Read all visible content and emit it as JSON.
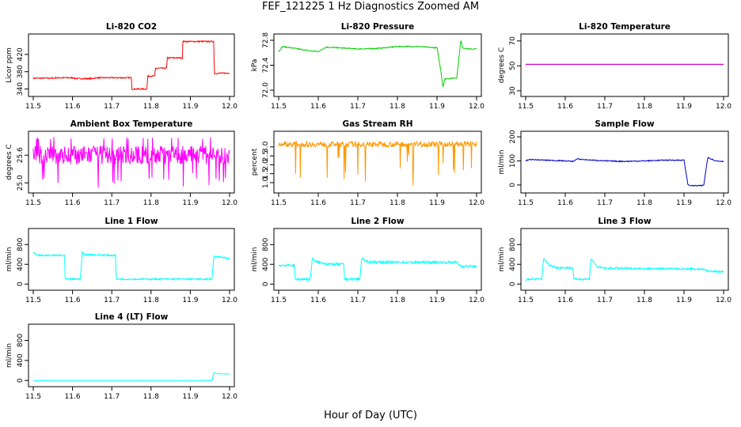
{
  "title": "FEF_121225  1 Hz Diagnostics Zoomed AM",
  "xlabel": "Hour of Day (UTC)",
  "chart_data": [
    {
      "type": "line",
      "title": "Li-820 CO2",
      "ylabel": "Licor ppm",
      "color": "#ff0000",
      "xlim": [
        11.5,
        12.0
      ],
      "ylim": [
        330,
        460
      ],
      "xticks": [
        11.5,
        11.6,
        11.7,
        11.8,
        11.9,
        12.0
      ],
      "yticks": [
        340,
        380,
        420
      ],
      "series": [
        {
          "x": [
            11.5,
            11.55,
            11.56,
            11.6,
            11.61,
            11.65,
            11.66,
            11.7,
            11.75,
            11.751,
            11.76,
            11.761,
            11.79,
            11.791,
            11.8,
            11.81,
            11.811,
            11.84,
            11.841,
            11.87,
            11.88,
            11.881,
            11.95,
            11.96,
            11.961,
            12.0
          ],
          "y": [
            365,
            365,
            366,
            366,
            364,
            364,
            366,
            366,
            366,
            340,
            340,
            340,
            340,
            370,
            370,
            370,
            388,
            388,
            412,
            412,
            412,
            450,
            450,
            450,
            376,
            377
          ],
          "noise": 1.5
        }
      ]
    },
    {
      "type": "line",
      "title": "Li-820 Pressure",
      "ylabel": "kPa",
      "color": "#00cc00",
      "xlim": [
        11.5,
        12.0
      ],
      "ylim": [
        71.95,
        72.85
      ],
      "xticks": [
        11.5,
        11.6,
        11.7,
        11.8,
        11.9,
        12.0
      ],
      "yticks": [
        72.0,
        72.4,
        72.8
      ],
      "series": [
        {
          "x": [
            11.5,
            11.51,
            11.55,
            11.58,
            11.6,
            11.62,
            11.65,
            11.7,
            11.75,
            11.8,
            11.85,
            11.9,
            11.91,
            11.915,
            11.92,
            11.95,
            11.955,
            11.96,
            11.965,
            11.98,
            12.0
          ],
          "y": [
            72.62,
            72.7,
            72.66,
            72.63,
            72.62,
            72.69,
            72.68,
            72.66,
            72.67,
            72.7,
            72.7,
            72.68,
            72.3,
            72.05,
            72.18,
            72.2,
            72.5,
            72.8,
            72.68,
            72.66,
            72.66
          ],
          "noise": 0.008
        }
      ]
    },
    {
      "type": "line",
      "title": "Li-820 Temperature",
      "ylabel": "degrees C",
      "color": "#cc00cc",
      "xlim": [
        11.5,
        12.0
      ],
      "ylim": [
        28,
        73
      ],
      "xticks": [
        11.5,
        11.6,
        11.7,
        11.8,
        11.9,
        12.0
      ],
      "yticks": [
        30,
        50,
        70
      ],
      "series": [
        {
          "x": [
            11.5,
            12.0
          ],
          "y": [
            51.2,
            51.2
          ],
          "noise": 0
        }
      ]
    },
    {
      "type": "line",
      "title": "Ambient Box Temperature",
      "ylabel": "degrees C",
      "color": "#ff00ff",
      "xlim": [
        11.5,
        12.0
      ],
      "ylim": [
        24.85,
        26.05
      ],
      "xticks": [
        11.5,
        11.6,
        11.7,
        11.8,
        11.9,
        12.0
      ],
      "yticks": [
        25.0,
        25.6
      ],
      "series": [
        {
          "x": [
            11.5,
            12.0
          ],
          "y": [
            25.6,
            25.6
          ],
          "noise": 0.2,
          "spikes_down": [
            25.0,
            24.9
          ],
          "spikes_up": [
            26.0
          ]
        }
      ]
    },
    {
      "type": "line",
      "title": "Gas Stream RH",
      "ylabel": "percent",
      "color": "#ff9900",
      "xlim": [
        11.5,
        12.0
      ],
      "ylim": [
        0.6,
        3.7
      ],
      "xticks": [
        11.5,
        11.6,
        11.7,
        11.8,
        11.9,
        12.0
      ],
      "yticks": [
        1.0,
        1.5,
        2.0,
        2.5,
        3.0
      ],
      "series": [
        {
          "x": [
            11.5,
            12.0
          ],
          "y": [
            3.15,
            3.15
          ],
          "noise": 0.15,
          "spikes_down": [
            1.2,
            0.7,
            1.5,
            2.0,
            2.3,
            1.8,
            0.8,
            2.5
          ]
        }
      ]
    },
    {
      "type": "line",
      "title": "Sample Flow",
      "ylabel": "ml/min",
      "color": "#0000cc",
      "xlim": [
        11.5,
        12.0
      ],
      "ylim": [
        -20,
        210
      ],
      "xticks": [
        11.5,
        11.6,
        11.7,
        11.8,
        11.9,
        12.0
      ],
      "yticks": [
        0,
        100,
        200
      ],
      "series": [
        {
          "x": [
            11.5,
            11.51,
            11.55,
            11.6,
            11.62,
            11.63,
            11.65,
            11.7,
            11.75,
            11.8,
            11.85,
            11.9,
            11.91,
            11.92,
            11.945,
            11.95,
            11.96,
            11.98,
            12.0
          ],
          "y": [
            100,
            106,
            103,
            100,
            98,
            108,
            105,
            100,
            98,
            100,
            103,
            103,
            0,
            -3,
            -3,
            0,
            115,
            100,
            98
          ],
          "noise": 2
        }
      ]
    },
    {
      "type": "line",
      "title": "Line 1 Flow",
      "ylabel": "ml/min",
      "color": "#00ffff",
      "xlim": [
        11.5,
        12.0
      ],
      "ylim": [
        -60,
        1060
      ],
      "xticks": [
        11.5,
        11.6,
        11.7,
        11.8,
        11.9,
        12.0
      ],
      "yticks": [
        0,
        400,
        800
      ],
      "series": [
        {
          "x": [
            11.5,
            11.51,
            11.58,
            11.581,
            11.62,
            11.625,
            11.63,
            11.7,
            11.71,
            11.711,
            11.95,
            11.955,
            11.96,
            12.0
          ],
          "y": [
            640,
            580,
            580,
            100,
            100,
            640,
            600,
            580,
            580,
            100,
            100,
            100,
            560,
            520
          ],
          "noise": 15
        }
      ]
    },
    {
      "type": "line",
      "title": "Line 2 Flow",
      "ylabel": "ml/min",
      "color": "#00ffff",
      "xlim": [
        11.5,
        12.0
      ],
      "ylim": [
        -60,
        1060
      ],
      "xticks": [
        11.5,
        11.6,
        11.7,
        11.8,
        11.9,
        12.0
      ],
      "yticks": [
        0,
        400,
        800
      ],
      "series": [
        {
          "x": [
            11.5,
            11.54,
            11.541,
            11.58,
            11.585,
            11.59,
            11.63,
            11.665,
            11.666,
            11.705,
            11.71,
            11.72,
            11.8,
            11.95,
            11.96,
            12.0
          ],
          "y": [
            380,
            380,
            100,
            100,
            540,
            460,
            400,
            400,
            100,
            100,
            540,
            450,
            440,
            440,
            360,
            360
          ],
          "noise": 25
        }
      ]
    },
    {
      "type": "line",
      "title": "Line 3 Flow",
      "ylabel": "ml/min",
      "color": "#00ffff",
      "xlim": [
        11.5,
        12.0
      ],
      "ylim": [
        -60,
        1060
      ],
      "xticks": [
        11.5,
        11.6,
        11.7,
        11.8,
        11.9,
        12.0
      ],
      "yticks": [
        0,
        400,
        800
      ],
      "series": [
        {
          "x": [
            11.5,
            11.505,
            11.54,
            11.541,
            11.545,
            11.56,
            11.58,
            11.62,
            11.621,
            11.66,
            11.661,
            11.665,
            11.68,
            11.7,
            11.9,
            11.95,
            11.96,
            12.0
          ],
          "y": [
            50,
            100,
            100,
            100,
            520,
            380,
            330,
            330,
            100,
            100,
            100,
            520,
            350,
            320,
            310,
            300,
            260,
            250
          ],
          "noise": 20
        }
      ]
    },
    {
      "type": "line",
      "title": "Line 4 (LT) Flow",
      "ylabel": "ml/min",
      "color": "#00ffff",
      "xlim": [
        11.5,
        12.0
      ],
      "ylim": [
        -60,
        1060
      ],
      "xticks": [
        11.5,
        11.6,
        11.7,
        11.8,
        11.9,
        12.0
      ],
      "yticks": [
        0,
        400,
        800
      ],
      "series": [
        {
          "x": [
            11.5,
            11.955,
            11.96,
            11.97,
            12.0
          ],
          "y": [
            0,
            0,
            160,
            135,
            130
          ],
          "noise": 2
        }
      ]
    }
  ]
}
